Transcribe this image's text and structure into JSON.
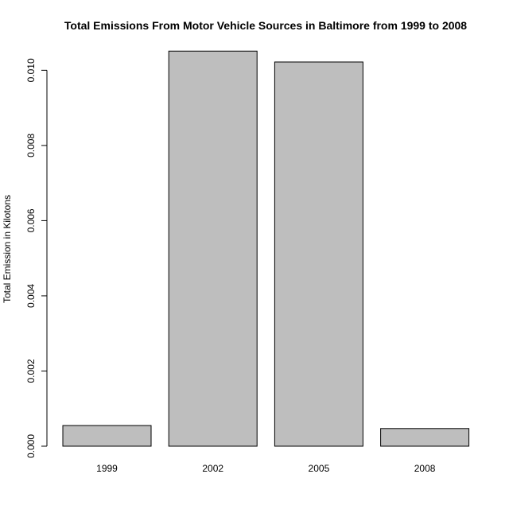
{
  "chart_data": {
    "type": "bar",
    "title": "Total Emissions From Motor Vehicle Sources in Baltimore from 1999 to 2008",
    "xlabel": "",
    "ylabel": "Total Emission in Kilotons",
    "categories": [
      "1999",
      "2002",
      "2005",
      "2008"
    ],
    "values": [
      0.00055,
      0.01051,
      0.01022,
      0.00047
    ],
    "ylim": [
      0,
      0.0106
    ],
    "yticks": [
      0,
      0.002,
      0.004,
      0.006,
      0.008,
      0.01
    ],
    "ytick_labels": [
      "0.000",
      "0.002",
      "0.004",
      "0.006",
      "0.008",
      "0.010"
    ],
    "bar_color": "#bebebe",
    "grid": false,
    "legend": "none"
  }
}
